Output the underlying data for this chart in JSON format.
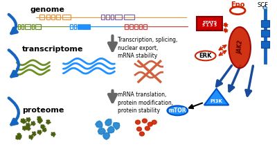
{
  "bg_color": "#ffffff",
  "genome_label": "genome",
  "transcriptome_label": "transcriptome",
  "proteome_label": "proteome",
  "arrow1_text": "Transcription, splicing,\nnuclear export,\nmRNA stability",
  "arrow2_text": "mRNA translation,\nprotein modification,\nprotein stability",
  "epo_label": "Epo",
  "scf_label": "SCF",
  "erk_label": "ERK",
  "jak2_label": "JAK2",
  "pi3k_label": "PI3K",
  "mtor_label": "mTOR",
  "orange_color": "#E8943A",
  "purple_color": "#7B68A8",
  "green_color": "#6B8E23",
  "blue_color": "#1E90FF",
  "red_color": "#CC2200",
  "salmon_color": "#D06040",
  "teal_arrow": "#1565C0",
  "gray_arrow": "#666666",
  "dark_green": "#4A6010",
  "cyan_blue": "#1E80CC",
  "light_red": "#CC4444",
  "stats_red": "#CC0000",
  "arrow_blue": "#1A4A9A"
}
